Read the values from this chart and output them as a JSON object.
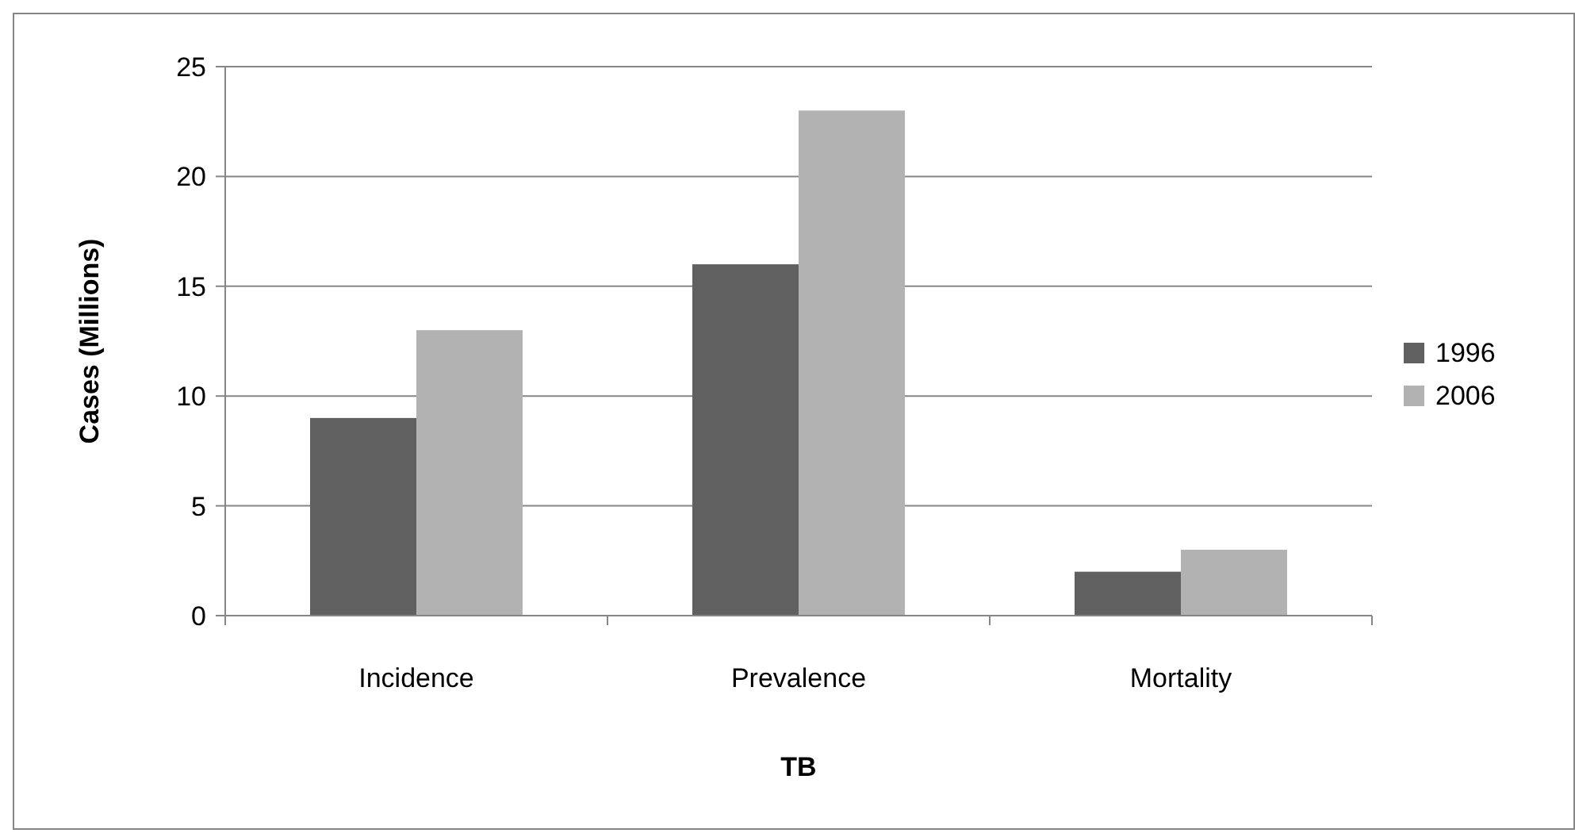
{
  "chart_data": {
    "type": "bar",
    "xlabel": "TB",
    "ylabel": "Cases (Millions)",
    "categories": [
      "Incidence",
      "Prevalence",
      "Mortality"
    ],
    "series": [
      {
        "name": "1996",
        "color": "#606060",
        "values": [
          9,
          16,
          2
        ]
      },
      {
        "name": "2006",
        "color": "#b2b2b2",
        "values": [
          13,
          23,
          3
        ]
      }
    ],
    "ylim": [
      0,
      25
    ],
    "yticks": [
      0,
      5,
      10,
      15,
      20,
      25
    ],
    "grid": "y",
    "legend": "right"
  }
}
